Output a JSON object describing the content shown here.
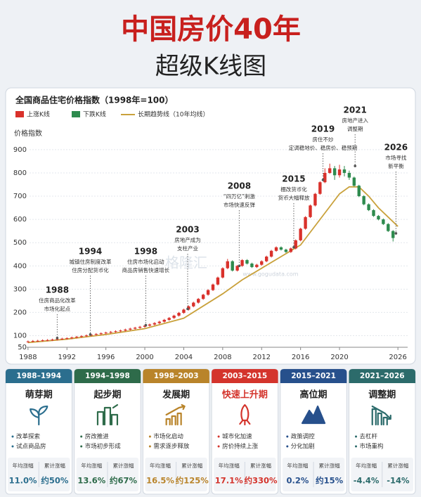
{
  "header": {
    "title": "中国房价40年",
    "subtitle": "超级K线图"
  },
  "watermark": [
    "格隆汇",
    "www.gogudata.com"
  ],
  "chart_data": {
    "type": "candlestick",
    "title": "全国商品住宅价格指数（1998年=100）",
    "y_label": "价格指数",
    "up": {
      "name": "上涨K线",
      "color": "#d9312b"
    },
    "down": {
      "name": "下跌K线",
      "color": "#2e8b4e"
    },
    "xlim": [
      1987,
      2027
    ],
    "xticks": [
      1988,
      1992,
      1996,
      2000,
      2004,
      2008,
      2012,
      2016,
      2020,
      2026
    ],
    "ylim": [
      50,
      930
    ],
    "yticks": [
      50,
      100,
      200,
      300,
      400,
      500,
      600,
      700,
      800,
      900
    ],
    "grid": true,
    "candles": {
      "x": [
        1988,
        1988.5,
        1989,
        1989.5,
        1990,
        1990.5,
        1991,
        1991.5,
        1992,
        1992.5,
        1993,
        1993.5,
        1994,
        1994.5,
        1995,
        1995.5,
        1996,
        1996.5,
        1997,
        1997.5,
        1998,
        1998.5,
        1999,
        1999.5,
        2000,
        2000.5,
        2001,
        2001.5,
        2002,
        2002.5,
        2003,
        2003.5,
        2004,
        2004.5,
        2005,
        2005.5,
        2006,
        2006.5,
        2007,
        2007.5,
        2008,
        2008.5,
        2009,
        2009.5,
        2010,
        2010.5,
        2011,
        2011.5,
        2012,
        2012.5,
        2013,
        2013.5,
        2014,
        2014.5,
        2015,
        2015.5,
        2016,
        2016.5,
        2017,
        2017.5,
        2018,
        2018.5,
        2019,
        2019.5,
        2020,
        2020.5,
        2021,
        2021.5,
        2022,
        2022.5,
        2023,
        2023.5,
        2024,
        2024.5,
        2025,
        2025.5
      ],
      "open": [
        73,
        75,
        77,
        78,
        80,
        81,
        83,
        85,
        87,
        89,
        92,
        95,
        98,
        101,
        104,
        107,
        110,
        113,
        116,
        119,
        122,
        126,
        130,
        134,
        138,
        143,
        148,
        154,
        160,
        168,
        176,
        186,
        198,
        212,
        226,
        242,
        258,
        276,
        296,
        320,
        350,
        390,
        420,
        380,
        400,
        425,
        410,
        395,
        405,
        420,
        440,
        465,
        480,
        470,
        460,
        475,
        510,
        560,
        610,
        660,
        710,
        760,
        800,
        820,
        790,
        815,
        800,
        780,
        745,
        700,
        665,
        640,
        615,
        600,
        580,
        550
      ],
      "high": [
        79,
        81,
        82,
        84,
        85,
        87,
        89,
        91,
        93,
        96,
        99,
        102,
        105,
        108,
        111,
        114,
        117,
        120,
        123,
        126,
        130,
        134,
        138,
        142,
        147,
        152,
        158,
        164,
        172,
        180,
        190,
        202,
        216,
        230,
        246,
        262,
        280,
        300,
        324,
        354,
        394,
        430,
        424,
        404,
        429,
        429,
        414,
        409,
        424,
        444,
        469,
        484,
        484,
        474,
        479,
        514,
        564,
        614,
        664,
        714,
        764,
        820,
        840,
        830,
        835,
        830,
        810,
        784,
        749,
        704,
        669,
        644,
        619,
        604,
        584,
        554
      ],
      "low": [
        69,
        71,
        73,
        74,
        76,
        77,
        79,
        81,
        83,
        85,
        88,
        91,
        94,
        97,
        100,
        103,
        106,
        109,
        112,
        115,
        118,
        122,
        126,
        130,
        134,
        139,
        144,
        150,
        156,
        164,
        172,
        182,
        194,
        208,
        222,
        238,
        254,
        272,
        292,
        316,
        346,
        386,
        376,
        376,
        396,
        406,
        391,
        391,
        401,
        416,
        436,
        461,
        466,
        456,
        456,
        471,
        506,
        556,
        606,
        656,
        706,
        756,
        796,
        770,
        780,
        785,
        770,
        741,
        696,
        661,
        636,
        611,
        596,
        576,
        546,
        505
      ],
      "close": [
        75,
        77,
        78,
        80,
        81,
        83,
        85,
        87,
        89,
        92,
        95,
        98,
        101,
        104,
        107,
        110,
        113,
        116,
        119,
        122,
        126,
        130,
        134,
        138,
        143,
        148,
        154,
        160,
        168,
        176,
        186,
        198,
        212,
        226,
        242,
        258,
        276,
        296,
        320,
        350,
        390,
        420,
        380,
        400,
        425,
        410,
        395,
        405,
        420,
        440,
        465,
        480,
        470,
        460,
        475,
        510,
        560,
        610,
        660,
        710,
        760,
        800,
        820,
        790,
        815,
        800,
        780,
        745,
        700,
        665,
        640,
        615,
        600,
        580,
        550,
        520
      ]
    },
    "trend": {
      "name": "长期趋势线（10年均线）",
      "color": "#c9a13b",
      "x": [
        1988,
        1992,
        1996,
        2000,
        2004,
        2008,
        2010,
        2012,
        2014,
        2016,
        2018,
        2020,
        2021,
        2022,
        2023,
        2024,
        2025,
        2026
      ],
      "values": [
        70,
        85,
        105,
        130,
        175,
        280,
        340,
        390,
        440,
        490,
        600,
        710,
        740,
        740,
        700,
        650,
        610,
        570
      ]
    },
    "annotations": [
      {
        "label": "1988",
        "text": [
          "住房商品化改革",
          "市场化起点"
        ],
        "x": 1991,
        "y": 90
      },
      {
        "label": "1994",
        "text": [
          "城镇住房制度改革",
          "住房分配货币化"
        ],
        "x": 1994.4,
        "y": 105
      },
      {
        "label": "1998",
        "text": [
          "住房市场化启动",
          "商品房销售快速增长"
        ],
        "x": 2000.1,
        "y": 145
      },
      {
        "label": "2003",
        "text": [
          "房地产成为",
          "支柱产业"
        ],
        "x": 2004.4,
        "y": 215
      },
      {
        "label": "2008",
        "text": [
          "“四万亿”刺激",
          "市场快速反弹"
        ],
        "x": 2009.7,
        "y": 400
      },
      {
        "label": "2015",
        "text": [
          "棚改货币化",
          "货币大幅释放"
        ],
        "x": 2015.3,
        "y": 480
      },
      {
        "label": "2019",
        "text": [
          "房住不炒",
          "定调稳地价、稳房价、稳预期"
        ],
        "x": 2018.3,
        "y": 770
      },
      {
        "label": "2021",
        "text": [
          "房地产进入",
          "调整期"
        ],
        "x": 2021.6,
        "y": 830
      },
      {
        "label": "2026",
        "text": [
          "市场寻找",
          "新平衡"
        ],
        "x": 2025.8,
        "y": 540
      }
    ]
  },
  "phases": [
    {
      "period": "1988–1994",
      "title": "萌芽期",
      "color": "#2b6e8e",
      "points": [
        "改革探索",
        "试点商品房"
      ],
      "annual_label": "年均涨幅",
      "total_label": "累计涨幅",
      "annual": "11.0%",
      "total": "约50%"
    },
    {
      "period": "1994–1998",
      "title": "起步期",
      "color": "#2e6b4a",
      "points": [
        "房改推进",
        "市场初步形成"
      ],
      "annual_label": "年均涨幅",
      "total_label": "累计涨幅",
      "annual": "13.6%",
      "total": "约67%"
    },
    {
      "period": "1998–2003",
      "title": "发展期",
      "color": "#b9842a",
      "points": [
        "市场化启动",
        "需求逐步释放"
      ],
      "annual_label": "年均涨幅",
      "total_label": "累计涨幅",
      "annual": "16.5%",
      "total": "约125%"
    },
    {
      "period": "2003–2015",
      "title": "快速上升期",
      "color": "#d4342c",
      "points": [
        "城市化加速",
        "房价持续上涨"
      ],
      "annual_label": "年均涨幅",
      "total_label": "累计涨幅",
      "annual": "17.1%",
      "total": "约330%"
    },
    {
      "period": "2015–2021",
      "title": "高位期",
      "color": "#27508c",
      "points": [
        "政策调控",
        "分化加剧"
      ],
      "annual_label": "年均涨幅",
      "total_label": "累计涨幅",
      "annual": "0.2%",
      "total": "约15%"
    },
    {
      "period": "2021–2026",
      "title": "调整期",
      "color": "#2c6b6b",
      "points": [
        "去杠杆",
        "市场重构"
      ],
      "annual_label": "年均涨幅",
      "total_label": "累计涨幅",
      "annual": "-4.4%",
      "total": "-14%"
    }
  ]
}
